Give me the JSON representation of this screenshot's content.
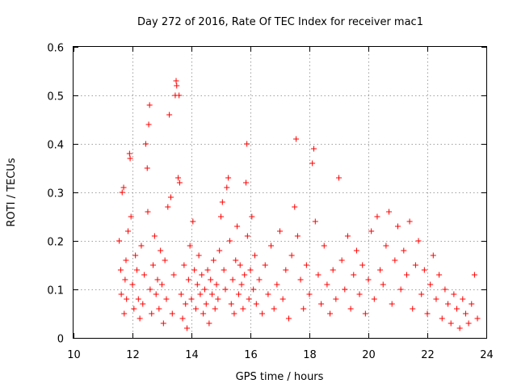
{
  "chart_data": {
    "type": "scatter",
    "title": "Day 272 of 2016, Rate Of TEC Index for receiver mac1",
    "xlabel": "GPS time / hours",
    "ylabel": "ROTI / TECUs",
    "xlim": [
      10,
      24
    ],
    "ylim": [
      0,
      0.6
    ],
    "x_ticks": [
      "10",
      "12",
      "14",
      "16",
      "18",
      "20",
      "22",
      "24"
    ],
    "y_ticks": [
      "0",
      "0.1",
      "0.2",
      "0.3",
      "0.4",
      "0.5",
      "0.6"
    ],
    "grid": true,
    "legend": "none",
    "marker": "plus",
    "series_color": "#ff0000",
    "series": [
      {
        "points": [
          [
            11.55,
            0.2
          ],
          [
            11.6,
            0.14
          ],
          [
            11.62,
            0.09
          ],
          [
            11.65,
            0.3
          ],
          [
            11.7,
            0.31
          ],
          [
            11.72,
            0.05
          ],
          [
            11.75,
            0.12
          ],
          [
            11.78,
            0.16
          ],
          [
            11.8,
            0.08
          ],
          [
            11.85,
            0.22
          ],
          [
            11.9,
            0.38
          ],
          [
            11.92,
            0.37
          ],
          [
            11.95,
            0.25
          ],
          [
            12.0,
            0.11
          ],
          [
            12.05,
            0.06
          ],
          [
            12.1,
            0.17
          ],
          [
            12.15,
            0.14
          ],
          [
            12.2,
            0.08
          ],
          [
            12.25,
            0.04
          ],
          [
            12.3,
            0.19
          ],
          [
            12.35,
            0.07
          ],
          [
            12.4,
            0.13
          ],
          [
            12.45,
            0.4
          ],
          [
            12.5,
            0.35
          ],
          [
            12.52,
            0.26
          ],
          [
            12.55,
            0.44
          ],
          [
            12.58,
            0.48
          ],
          [
            12.6,
            0.1
          ],
          [
            12.65,
            0.05
          ],
          [
            12.7,
            0.15
          ],
          [
            12.75,
            0.21
          ],
          [
            12.8,
            0.09
          ],
          [
            12.85,
            0.12
          ],
          [
            12.9,
            0.06
          ],
          [
            12.95,
            0.18
          ],
          [
            13.0,
            0.11
          ],
          [
            13.05,
            0.03
          ],
          [
            13.1,
            0.16
          ],
          [
            13.15,
            0.08
          ],
          [
            13.2,
            0.27
          ],
          [
            13.25,
            0.46
          ],
          [
            13.3,
            0.29
          ],
          [
            13.35,
            0.05
          ],
          [
            13.4,
            0.13
          ],
          [
            13.45,
            0.5
          ],
          [
            13.48,
            0.53
          ],
          [
            13.5,
            0.52
          ],
          [
            13.55,
            0.33
          ],
          [
            13.58,
            0.5
          ],
          [
            13.6,
            0.32
          ],
          [
            13.65,
            0.09
          ],
          [
            13.7,
            0.04
          ],
          [
            13.75,
            0.15
          ],
          [
            13.8,
            0.07
          ],
          [
            13.85,
            0.02
          ],
          [
            13.9,
            0.12
          ],
          [
            13.95,
            0.19
          ],
          [
            14.0,
            0.08
          ],
          [
            14.05,
            0.24
          ],
          [
            14.1,
            0.14
          ],
          [
            14.15,
            0.06
          ],
          [
            14.2,
            0.11
          ],
          [
            14.25,
            0.17
          ],
          [
            14.3,
            0.09
          ],
          [
            14.35,
            0.13
          ],
          [
            14.4,
            0.05
          ],
          [
            14.45,
            0.1
          ],
          [
            14.5,
            0.07
          ],
          [
            14.55,
            0.14
          ],
          [
            14.6,
            0.03
          ],
          [
            14.65,
            0.12
          ],
          [
            14.7,
            0.09
          ],
          [
            14.75,
            0.16
          ],
          [
            14.8,
            0.06
          ],
          [
            14.85,
            0.11
          ],
          [
            14.9,
            0.08
          ],
          [
            14.95,
            0.18
          ],
          [
            15.0,
            0.25
          ],
          [
            15.05,
            0.28
          ],
          [
            15.1,
            0.14
          ],
          [
            15.15,
            0.1
          ],
          [
            15.2,
            0.31
          ],
          [
            15.25,
            0.33
          ],
          [
            15.3,
            0.2
          ],
          [
            15.35,
            0.07
          ],
          [
            15.4,
            0.12
          ],
          [
            15.45,
            0.05
          ],
          [
            15.5,
            0.16
          ],
          [
            15.55,
            0.23
          ],
          [
            15.6,
            0.09
          ],
          [
            15.65,
            0.15
          ],
          [
            15.7,
            0.11
          ],
          [
            15.75,
            0.06
          ],
          [
            15.8,
            0.13
          ],
          [
            15.85,
            0.32
          ],
          [
            15.88,
            0.4
          ],
          [
            15.9,
            0.21
          ],
          [
            15.95,
            0.08
          ],
          [
            16.0,
            0.14
          ],
          [
            16.05,
            0.25
          ],
          [
            16.1,
            0.1
          ],
          [
            16.15,
            0.17
          ],
          [
            16.2,
            0.07
          ],
          [
            16.3,
            0.12
          ],
          [
            16.4,
            0.05
          ],
          [
            16.5,
            0.15
          ],
          [
            16.6,
            0.09
          ],
          [
            16.7,
            0.19
          ],
          [
            16.8,
            0.06
          ],
          [
            16.9,
            0.11
          ],
          [
            17.0,
            0.22
          ],
          [
            17.1,
            0.08
          ],
          [
            17.2,
            0.14
          ],
          [
            17.3,
            0.04
          ],
          [
            17.4,
            0.17
          ],
          [
            17.5,
            0.27
          ],
          [
            17.55,
            0.41
          ],
          [
            17.6,
            0.21
          ],
          [
            17.7,
            0.12
          ],
          [
            17.8,
            0.06
          ],
          [
            17.9,
            0.15
          ],
          [
            18.0,
            0.09
          ],
          [
            18.1,
            0.36
          ],
          [
            18.15,
            0.39
          ],
          [
            18.2,
            0.24
          ],
          [
            18.3,
            0.13
          ],
          [
            18.4,
            0.07
          ],
          [
            18.5,
            0.19
          ],
          [
            18.6,
            0.11
          ],
          [
            18.7,
            0.05
          ],
          [
            18.8,
            0.14
          ],
          [
            18.9,
            0.08
          ],
          [
            19.0,
            0.33
          ],
          [
            19.1,
            0.16
          ],
          [
            19.2,
            0.1
          ],
          [
            19.3,
            0.21
          ],
          [
            19.4,
            0.06
          ],
          [
            19.5,
            0.13
          ],
          [
            19.6,
            0.18
          ],
          [
            19.7,
            0.09
          ],
          [
            19.8,
            0.15
          ],
          [
            19.9,
            0.05
          ],
          [
            20.0,
            0.12
          ],
          [
            20.1,
            0.22
          ],
          [
            20.2,
            0.08
          ],
          [
            20.3,
            0.25
          ],
          [
            20.4,
            0.14
          ],
          [
            20.5,
            0.11
          ],
          [
            20.6,
            0.19
          ],
          [
            20.7,
            0.26
          ],
          [
            20.8,
            0.07
          ],
          [
            20.9,
            0.16
          ],
          [
            21.0,
            0.23
          ],
          [
            21.1,
            0.1
          ],
          [
            21.2,
            0.18
          ],
          [
            21.3,
            0.13
          ],
          [
            21.4,
            0.24
          ],
          [
            21.5,
            0.06
          ],
          [
            21.6,
            0.15
          ],
          [
            21.7,
            0.2
          ],
          [
            21.8,
            0.09
          ],
          [
            21.9,
            0.14
          ],
          [
            22.0,
            0.05
          ],
          [
            22.1,
            0.11
          ],
          [
            22.2,
            0.17
          ],
          [
            22.3,
            0.08
          ],
          [
            22.4,
            0.13
          ],
          [
            22.5,
            0.04
          ],
          [
            22.6,
            0.1
          ],
          [
            22.7,
            0.07
          ],
          [
            22.8,
            0.03
          ],
          [
            22.9,
            0.09
          ],
          [
            23.0,
            0.06
          ],
          [
            23.1,
            0.02
          ],
          [
            23.2,
            0.08
          ],
          [
            23.3,
            0.05
          ],
          [
            23.4,
            0.03
          ],
          [
            23.5,
            0.07
          ],
          [
            23.6,
            0.13
          ],
          [
            23.7,
            0.04
          ]
        ]
      }
    ]
  }
}
